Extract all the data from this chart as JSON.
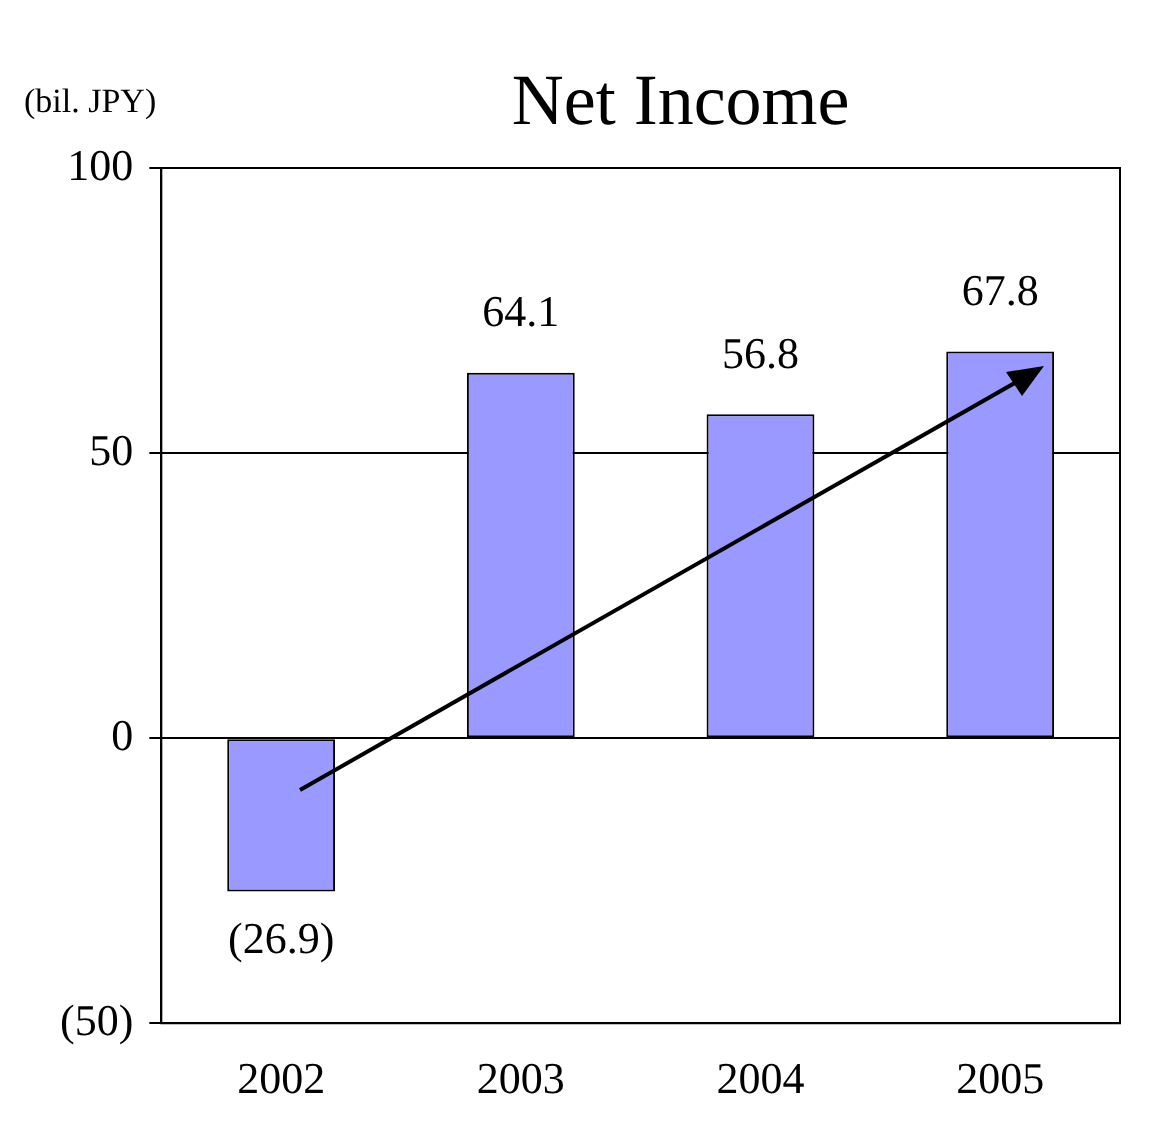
{
  "chart_data": {
    "type": "bar",
    "title": "Net Income",
    "ylabel": "(bil. JPY)",
    "categories": [
      "2002",
      "2003",
      "2004",
      "2005"
    ],
    "values": [
      -26.9,
      64.1,
      56.8,
      67.8
    ],
    "value_labels": [
      "(26.9)",
      "64.1",
      "56.8",
      "67.8"
    ],
    "color": "#9999ff",
    "ylim": [
      -50,
      100
    ],
    "yticks": [
      {
        "value": -50,
        "label": "(50)"
      },
      0,
      50,
      100
    ],
    "grid": "y"
  }
}
